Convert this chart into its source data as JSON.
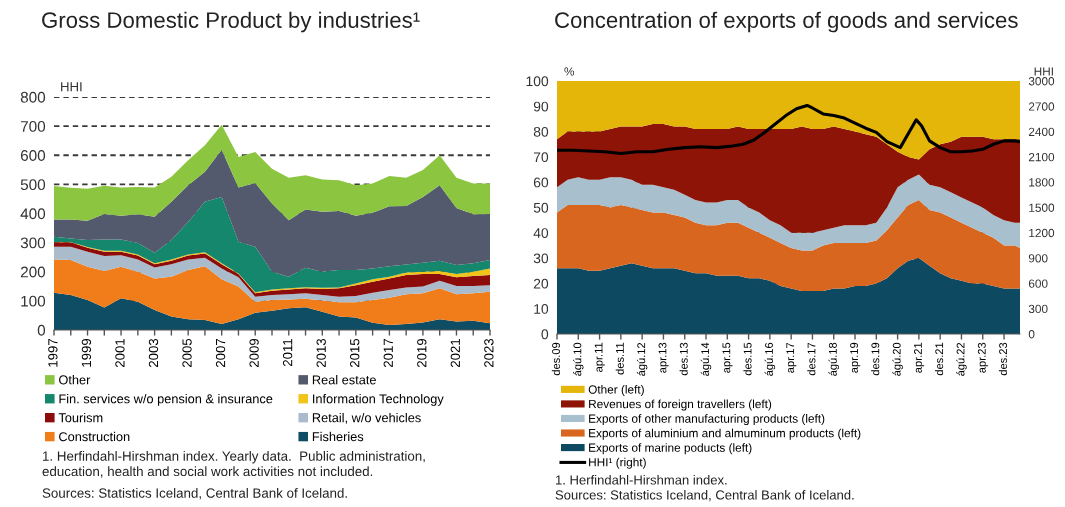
{
  "chart_data": [
    {
      "type": "area",
      "stacked": true,
      "title": "Gross Domestic Product by industries¹",
      "ylabel": "HHI",
      "categories": [
        "1997",
        null,
        "1999",
        null,
        "2001",
        null,
        "2003",
        null,
        "2005",
        null,
        "2007",
        null,
        "2009",
        null,
        "2011",
        null,
        "2013",
        null,
        "2015",
        null,
        "2017",
        null,
        "2019",
        null,
        "2021",
        null,
        "2023"
      ],
      "ylim": [
        0,
        800
      ],
      "yticks": [
        0,
        100,
        200,
        300,
        400,
        500,
        600,
        700,
        800
      ],
      "grid": "y",
      "legend": "bottom",
      "series": [
        {
          "name": "Fisheries",
          "color": "#0e4d64",
          "values": [
            128,
            120,
            103,
            77,
            109,
            97,
            69,
            46,
            37,
            34,
            21,
            37,
            59,
            66,
            75,
            78,
            63,
            46,
            43,
            25,
            17,
            21,
            26,
            37,
            29,
            32,
            23
          ]
        },
        {
          "name": "Construction",
          "color": "#f07d1a",
          "values": [
            114,
            120,
            114,
            126,
            108,
            103,
            108,
            137,
            169,
            185,
            153,
            112,
            38,
            37,
            30,
            29,
            38,
            49,
            52,
            78,
            94,
            102,
            100,
            106,
            94,
            94,
            108
          ]
        },
        {
          "name": "Retail, w/o vehicles",
          "color": "#aabccb",
          "values": [
            44,
            46,
            52,
            51,
            40,
            42,
            38,
            43,
            36,
            29,
            37,
            32,
            17,
            17,
            18,
            19,
            19,
            19,
            22,
            25,
            26,
            23,
            23,
            26,
            28,
            25,
            23
          ]
        },
        {
          "name": "Tourism",
          "color": "#8c0c0c",
          "values": [
            15,
            15,
            13,
            15,
            12,
            14,
            11,
            12,
            14,
            15,
            15,
            11,
            12,
            15,
            16,
            17,
            21,
            29,
            37,
            38,
            40,
            43,
            43,
            23,
            30,
            34,
            35
          ]
        },
        {
          "name": "Information Technology",
          "color": "#f0c419",
          "values": [
            1,
            1,
            3,
            3,
            3,
            3,
            3,
            4,
            3,
            4,
            3,
            2,
            4,
            4,
            4,
            4,
            4,
            3,
            6,
            8,
            6,
            8,
            8,
            11,
            11,
            15,
            22
          ]
        },
        {
          "name": "Fin. services w/o pension & insurance",
          "color": "#14876d",
          "values": [
            18,
            12,
            24,
            39,
            39,
            40,
            36,
            67,
            112,
            173,
            228,
            109,
            156,
            61,
            40,
            67,
            55,
            60,
            46,
            37,
            36,
            28,
            31,
            35,
            31,
            29,
            29
          ]
        },
        {
          "name": "Real estate",
          "color": "#545a6e",
          "values": [
            59,
            65,
            66,
            87,
            81,
            98,
            124,
            131,
            126,
            103,
            162,
            186,
            219,
            234,
            194,
            200,
            206,
            203,
            186,
            192,
            206,
            201,
            226,
            259,
            196,
            168,
            158
          ]
        },
        {
          "name": "Other",
          "color": "#8cc540",
          "values": [
            115,
            109,
            110,
            97,
            97,
            94,
            100,
            86,
            86,
            91,
            86,
            105,
            106,
            120,
            146,
            117,
            111,
            105,
            105,
            100,
            104,
            97,
            92,
            103,
            104,
            106,
            105
          ]
        }
      ],
      "annotations": [
        "1. Herfindahl-Hirshman index. Yearly data.  Public administration, education, health and social work activities not included.",
        "Sources: Statistics Iceland, Central Bank of Iceland."
      ]
    },
    {
      "type": "area",
      "stacked": true,
      "title": "Concentration of exports of goods and services",
      "ylabel": "%",
      "y2label": "HHI",
      "x": [
        "2009-12",
        "2010-04",
        "2010-08",
        "2010-12",
        "2011-04",
        "2011-08",
        "2011-12",
        "2012-04",
        "2012-08",
        "2012-12",
        "2013-04",
        "2013-08",
        "2013-12",
        "2014-04",
        "2014-08",
        "2014-12",
        "2015-04",
        "2015-08",
        "2015-12",
        "2016-04",
        "2016-08",
        "2016-12",
        "2017-04",
        "2017-08",
        "2017-12",
        "2018-04",
        "2018-08",
        "2018-12",
        "2019-04",
        "2019-08",
        "2019-12",
        "2020-04",
        "2020-08",
        "2020-12",
        "2021-04",
        "2021-08",
        "2021-12",
        "2022-04",
        "2022-08",
        "2022-12",
        "2023-04",
        "2023-08",
        "2023-12",
        "2024-04",
        "2024-06"
      ],
      "xlim": [
        "2009-12",
        "2024-06"
      ],
      "xticks": [
        {
          "value": "2009-12",
          "label": "des.09"
        },
        {
          "value": "2010-08",
          "label": "ágú.10"
        },
        {
          "value": "2011-04",
          "label": "apr.11"
        },
        {
          "value": "2011-12",
          "label": "des.11"
        },
        {
          "value": "2012-08",
          "label": "ágú.12"
        },
        {
          "value": "2013-04",
          "label": "apr.13"
        },
        {
          "value": "2013-12",
          "label": "des.13"
        },
        {
          "value": "2014-08",
          "label": "ágú.14"
        },
        {
          "value": "2015-04",
          "label": "apr.15"
        },
        {
          "value": "2015-12",
          "label": "des.15"
        },
        {
          "value": "2016-08",
          "label": "ágú.16"
        },
        {
          "value": "2017-04",
          "label": "apr.17"
        },
        {
          "value": "2017-12",
          "label": "des.17"
        },
        {
          "value": "2018-08",
          "label": "ágú.18"
        },
        {
          "value": "2019-04",
          "label": "apr.19"
        },
        {
          "value": "2019-12",
          "label": "des.19"
        },
        {
          "value": "2020-08",
          "label": "ágú.20"
        },
        {
          "value": "2021-04",
          "label": "apr.21"
        },
        {
          "value": "2021-12",
          "label": "des.21"
        },
        {
          "value": "2022-08",
          "label": "ágú.22"
        },
        {
          "value": "2023-04",
          "label": "apr.23"
        },
        {
          "value": "2023-12",
          "label": "des.23"
        }
      ],
      "ylim": [
        0,
        100
      ],
      "yticks": [
        0,
        10,
        20,
        30,
        40,
        50,
        60,
        70,
        80,
        90,
        100
      ],
      "y2lim": [
        0,
        3000
      ],
      "y2ticks": [
        0,
        300,
        600,
        900,
        1200,
        1500,
        1800,
        2100,
        2400,
        2700,
        3000
      ],
      "grid": "y",
      "legend": "bottom",
      "series": [
        {
          "name": "Exports of marine poducts (left)",
          "color": "#0d4a62",
          "values": [
            26,
            26,
            26,
            25,
            25,
            26,
            27,
            28,
            27,
            26,
            26,
            26,
            25,
            24,
            24,
            23,
            23,
            23,
            22,
            22,
            21,
            19,
            18,
            17,
            17,
            17,
            18,
            18,
            19,
            19,
            20,
            22,
            26,
            29,
            30,
            27,
            24,
            22,
            21,
            20,
            20,
            19,
            18,
            18,
            18
          ]
        },
        {
          "name": "Exports of aluminium and almuminum products (left)",
          "color": "#d9661f",
          "values": [
            22,
            25,
            25,
            26,
            26,
            24,
            24,
            22,
            22,
            22,
            22,
            21,
            21,
            20,
            19,
            20,
            21,
            21,
            20,
            18,
            17,
            17,
            16,
            16,
            16,
            18,
            18,
            18,
            17,
            17,
            17,
            19,
            20,
            22,
            23,
            22,
            24,
            24,
            23,
            22,
            20,
            19,
            17,
            17,
            16
          ]
        },
        {
          "name": "Exports of other manufacturing products (left)",
          "color": "#a8bfce",
          "values": [
            10,
            10,
            11,
            10,
            10,
            12,
            11,
            11,
            10,
            11,
            10,
            10,
            9,
            9,
            9,
            9,
            9,
            9,
            8,
            8,
            7,
            7,
            6,
            7,
            7,
            6,
            6,
            7,
            7,
            7,
            7,
            9,
            12,
            10,
            10,
            10,
            10,
            10,
            10,
            10,
            10,
            9,
            10,
            9,
            10
          ]
        },
        {
          "name": "Revenues of foreign travellers (left)",
          "color": "#8e1407",
          "values": [
            19,
            19,
            18,
            19,
            19,
            19,
            20,
            21,
            23,
            24,
            25,
            25,
            27,
            28,
            29,
            29,
            28,
            29,
            31,
            33,
            36,
            38,
            41,
            42,
            41,
            40,
            40,
            38,
            37,
            36,
            34,
            25,
            14,
            9,
            6,
            14,
            17,
            20,
            24,
            26,
            28,
            30,
            32,
            33,
            33
          ]
        },
        {
          "name": "Other (left)",
          "color": "#e4b60a",
          "values": [
            23,
            20,
            20,
            20,
            20,
            19,
            18,
            18,
            18,
            17,
            17,
            18,
            18,
            19,
            19,
            19,
            19,
            18,
            19,
            19,
            19,
            19,
            19,
            18,
            19,
            19,
            18,
            19,
            20,
            21,
            22,
            25,
            28,
            30,
            31,
            27,
            25,
            24,
            22,
            22,
            22,
            23,
            23,
            23,
            23
          ]
        },
        {
          "name": "HHI¹ (right)",
          "type": "line",
          "axis": "y2",
          "color": "#000000",
          "x": [
            "2009-12",
            "2010-06",
            "2010-12",
            "2011-06",
            "2011-12",
            "2012-06",
            "2012-12",
            "2013-06",
            "2013-12",
            "2014-06",
            "2014-12",
            "2015-06",
            "2015-10",
            "2016-02",
            "2016-06",
            "2016-10",
            "2017-02",
            "2017-06",
            "2017-10",
            "2017-12",
            "2018-04",
            "2018-08",
            "2018-12",
            "2019-04",
            "2019-08",
            "2019-12",
            "2020-04",
            "2020-09",
            "2021-03",
            "2021-05",
            "2021-08",
            "2021-12",
            "2022-04",
            "2022-08",
            "2022-12",
            "2023-04",
            "2023-08",
            "2023-12",
            "2024-04",
            "2024-06"
          ],
          "values": [
            2180,
            2180,
            2170,
            2160,
            2140,
            2160,
            2160,
            2190,
            2210,
            2220,
            2210,
            2230,
            2250,
            2300,
            2390,
            2490,
            2590,
            2670,
            2710,
            2680,
            2610,
            2590,
            2560,
            2500,
            2440,
            2390,
            2280,
            2210,
            2540,
            2470,
            2290,
            2210,
            2160,
            2160,
            2170,
            2190,
            2250,
            2290,
            2290,
            2280
          ]
        }
      ],
      "annotations": [
        "1. Herfindahl-Hirshman index.",
        "Sources: Statistics Iceland, Central Bank of Iceland."
      ]
    }
  ]
}
